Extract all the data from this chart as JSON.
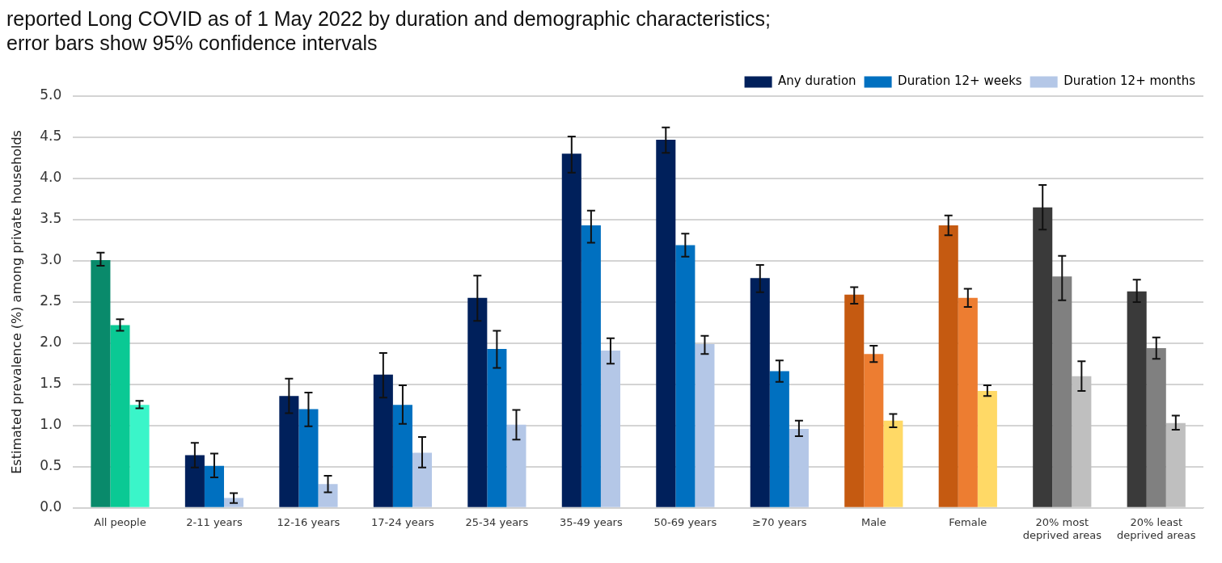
{
  "chart_data": {
    "type": "bar",
    "title": "reported Long COVID as of 1 May 2022 by duration and demographic characteristics; error bars show 95% confidence intervals",
    "ylabel": "Estimated prevalence (%) among private households",
    "categories": [
      "All people",
      "2-11 years",
      "12-16 years",
      "17-24 years",
      "25-34 years",
      "35-49 years",
      "50-69 years",
      "≥70 years",
      "Male",
      "Female",
      "20% most deprived areas",
      "20% least deprived areas"
    ],
    "series": [
      {
        "name": "Any duration",
        "colors": [
          "#098a6b",
          "#00205b",
          "#00205b",
          "#00205b",
          "#00205b",
          "#00205b",
          "#00205b",
          "#00205b",
          "#c55a11",
          "#c55a11",
          "#3a3a3a",
          "#3a3a3a"
        ],
        "values": [
          3.01,
          0.64,
          1.36,
          1.62,
          2.55,
          4.3,
          4.47,
          2.79,
          2.59,
          3.43,
          3.65,
          2.63
        ],
        "errors": [
          [
            2.94,
            3.1
          ],
          [
            0.49,
            0.79
          ],
          [
            1.15,
            1.57
          ],
          [
            1.34,
            1.88
          ],
          [
            2.27,
            2.82
          ],
          [
            4.07,
            4.51
          ],
          [
            4.31,
            4.62
          ],
          [
            2.62,
            2.95
          ],
          [
            2.48,
            2.68
          ],
          [
            3.31,
            3.55
          ],
          [
            3.38,
            3.92
          ],
          [
            2.5,
            2.77
          ]
        ]
      },
      {
        "name": "Duration 12+ weeks",
        "colors": [
          "#0ac994",
          "#0070c0",
          "#0070c0",
          "#0070c0",
          "#0070c0",
          "#0070c0",
          "#0070c0",
          "#0070c0",
          "#ed7d31",
          "#ed7d31",
          "#808080",
          "#808080"
        ],
        "values": [
          2.22,
          0.51,
          1.2,
          1.25,
          1.93,
          3.43,
          3.19,
          1.66,
          1.87,
          2.55,
          2.81,
          1.94
        ],
        "errors": [
          [
            2.15,
            2.29
          ],
          [
            0.37,
            0.66
          ],
          [
            0.99,
            1.4
          ],
          [
            1.02,
            1.49
          ],
          [
            1.7,
            2.15
          ],
          [
            3.22,
            3.61
          ],
          [
            3.05,
            3.33
          ],
          [
            1.53,
            1.79
          ],
          [
            1.77,
            1.97
          ],
          [
            2.44,
            2.66
          ],
          [
            2.52,
            3.06
          ],
          [
            1.81,
            2.07
          ]
        ]
      },
      {
        "name": "Duration 12+ months",
        "colors": [
          "#3af5c9",
          "#b4c7e7",
          "#b4c7e7",
          "#b4c7e7",
          "#b4c7e7",
          "#b4c7e7",
          "#b4c7e7",
          "#b4c7e7",
          "#ffd966",
          "#ffd966",
          "#bfbfbf",
          "#bfbfbf"
        ],
        "values": [
          1.25,
          0.12,
          0.29,
          0.67,
          1.01,
          1.91,
          1.99,
          0.96,
          1.06,
          1.42,
          1.6,
          1.03
        ],
        "errors": [
          [
            1.21,
            1.3
          ],
          [
            0.06,
            0.18
          ],
          [
            0.19,
            0.39
          ],
          [
            0.49,
            0.86
          ],
          [
            0.83,
            1.19
          ],
          [
            1.75,
            2.06
          ],
          [
            1.87,
            2.09
          ],
          [
            0.87,
            1.06
          ],
          [
            0.98,
            1.14
          ],
          [
            1.36,
            1.49
          ],
          [
            1.42,
            1.78
          ],
          [
            0.95,
            1.12
          ]
        ]
      }
    ],
    "ylim": [
      0,
      5
    ],
    "yticks": [
      {
        "value": 0,
        "label": "0.0"
      },
      0.5,
      {
        "value": 1,
        "label": "1.0"
      },
      1.5,
      {
        "value": 2,
        "label": "2.0"
      },
      2.5,
      {
        "value": 3,
        "label": "3.0"
      },
      3.5,
      {
        "value": 4,
        "label": "4.0"
      },
      4.5,
      {
        "value": 5,
        "label": "5.0"
      }
    ],
    "grid": "y",
    "legend": "top right"
  }
}
